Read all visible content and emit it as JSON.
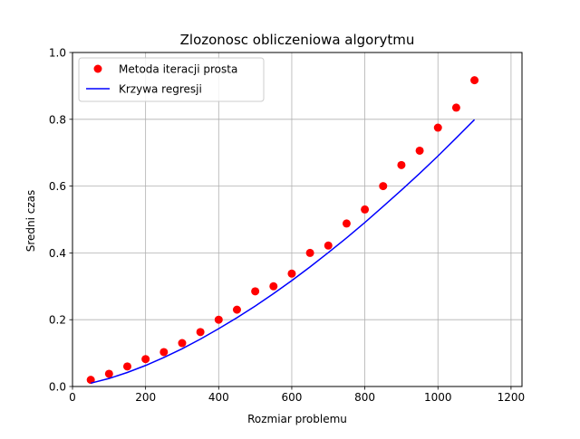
{
  "chart_data": {
    "type": "scatter",
    "title": "Zlozonosc obliczeniowa algorytmu",
    "xlabel": "Rozmiar problemu",
    "ylabel": "Sredni czas",
    "xlim": [
      0,
      1230
    ],
    "ylim": [
      0,
      1.0
    ],
    "xticks": [
      0,
      200,
      400,
      600,
      800,
      1000,
      1200
    ],
    "yticks": [
      0.0,
      0.2,
      0.4,
      0.6,
      0.8,
      1.0
    ],
    "xtick_labels": [
      "0",
      "200",
      "400",
      "600",
      "800",
      "1000",
      "1200"
    ],
    "ytick_labels": [
      "0.0",
      "0.2",
      "0.4",
      "0.6",
      "0.8",
      "1.0"
    ],
    "grid": true,
    "legend_position": "top-left",
    "series": [
      {
        "name": "Metoda iteracji prosta",
        "kind": "scatter",
        "color": "#ff0000",
        "x": [
          50,
          100,
          150,
          200,
          250,
          300,
          350,
          400,
          450,
          500,
          550,
          600,
          650,
          700,
          750,
          800,
          850,
          900,
          950,
          1000,
          1050,
          1100
        ],
        "y": [
          0.02,
          0.038,
          0.06,
          0.082,
          0.103,
          0.13,
          0.163,
          0.2,
          0.23,
          0.285,
          0.3,
          0.338,
          0.4,
          0.422,
          0.488,
          0.53,
          0.6,
          0.663,
          0.706,
          0.775,
          0.835,
          0.917
        ]
      },
      {
        "name": "Krzywa regresji",
        "kind": "line",
        "color": "#0000ff",
        "x": [
          50,
          100,
          150,
          200,
          250,
          300,
          350,
          400,
          450,
          500,
          550,
          600,
          650,
          700,
          750,
          800,
          850,
          900,
          950,
          1000,
          1050,
          1100
        ],
        "y": [
          0.01,
          0.024,
          0.042,
          0.063,
          0.087,
          0.113,
          0.142,
          0.173,
          0.206,
          0.241,
          0.278,
          0.317,
          0.358,
          0.401,
          0.445,
          0.491,
          0.539,
          0.588,
          0.638,
          0.69,
          0.744,
          0.799
        ]
      }
    ]
  }
}
